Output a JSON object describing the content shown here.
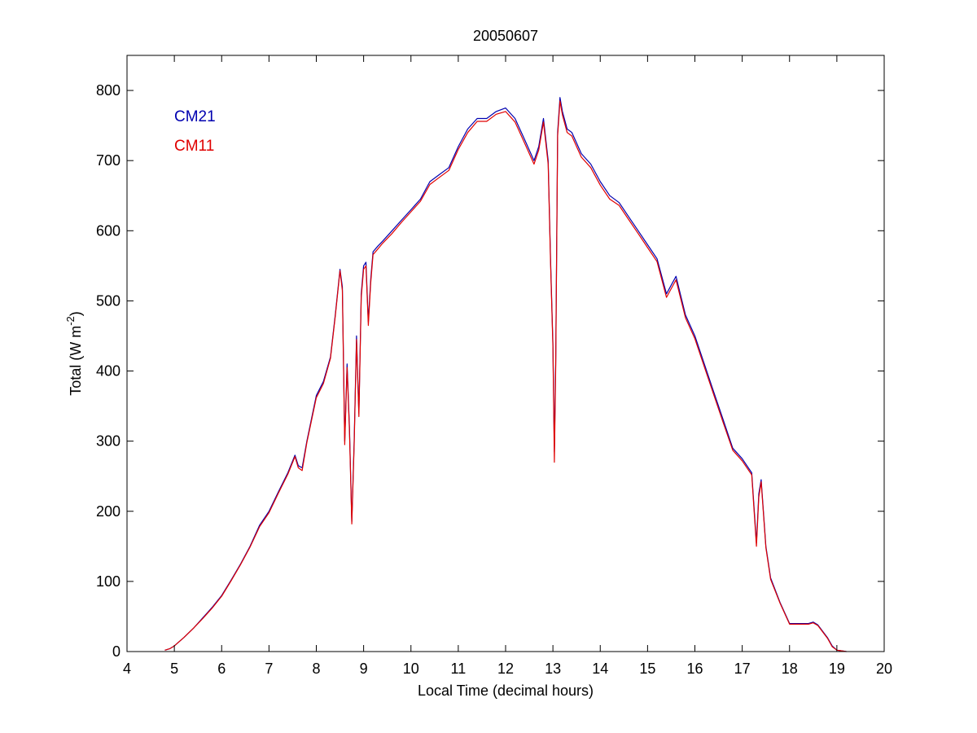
{
  "chart_data": {
    "type": "line",
    "title": "20050607",
    "xlabel": "Local Time (decimal hours)",
    "ylabel": {
      "prefix": "Total (W m",
      "superscript": "-2",
      "suffix": ")"
    },
    "xlim": [
      4,
      20
    ],
    "ylim": [
      0,
      850
    ],
    "xticks": [
      4,
      5,
      6,
      7,
      8,
      9,
      10,
      11,
      12,
      13,
      14,
      15,
      16,
      17,
      18,
      19,
      20
    ],
    "yticks": [
      0,
      100,
      200,
      300,
      400,
      500,
      600,
      700,
      800
    ],
    "grid": false,
    "legend": {
      "position": "top-left"
    },
    "series": [
      {
        "name": "CM21",
        "color": "#0000b0",
        "x": [
          4.8,
          4.9,
          5.0,
          5.2,
          5.4,
          5.6,
          5.8,
          6.0,
          6.2,
          6.4,
          6.6,
          6.8,
          7.0,
          7.2,
          7.4,
          7.55,
          7.62,
          7.7,
          7.8,
          8.0,
          8.15,
          8.3,
          8.4,
          8.5,
          8.55,
          8.6,
          8.65,
          8.7,
          8.75,
          8.8,
          8.85,
          8.9,
          8.95,
          9.0,
          9.05,
          9.1,
          9.15,
          9.2,
          9.3,
          9.4,
          9.6,
          9.8,
          10.0,
          10.2,
          10.4,
          10.6,
          10.8,
          11.0,
          11.2,
          11.4,
          11.6,
          11.8,
          12.0,
          12.2,
          12.4,
          12.6,
          12.7,
          12.8,
          12.9,
          12.95,
          13.0,
          13.03,
          13.06,
          13.1,
          13.15,
          13.2,
          13.3,
          13.4,
          13.5,
          13.6,
          13.8,
          14.0,
          14.2,
          14.4,
          14.6,
          14.8,
          15.0,
          15.2,
          15.4,
          15.6,
          15.8,
          16.0,
          16.2,
          16.4,
          16.6,
          16.8,
          17.0,
          17.2,
          17.3,
          17.35,
          17.4,
          17.5,
          17.6,
          17.8,
          18.0,
          18.2,
          18.4,
          18.5,
          18.6,
          18.8,
          18.9,
          19.0,
          19.1,
          19.2
        ],
        "values": [
          2,
          4,
          8,
          20,
          33,
          48,
          63,
          80,
          102,
          125,
          150,
          180,
          200,
          228,
          255,
          280,
          265,
          262,
          300,
          365,
          385,
          420,
          480,
          545,
          520,
          300,
          410,
          320,
          185,
          300,
          450,
          340,
          510,
          550,
          555,
          470,
          530,
          570,
          578,
          585,
          600,
          615,
          630,
          645,
          670,
          680,
          690,
          720,
          745,
          760,
          760,
          770,
          775,
          760,
          730,
          700,
          720,
          760,
          700,
          560,
          440,
          285,
          420,
          740,
          790,
          770,
          745,
          740,
          725,
          710,
          695,
          670,
          650,
          640,
          620,
          600,
          580,
          560,
          510,
          535,
          480,
          450,
          410,
          370,
          330,
          290,
          275,
          255,
          155,
          225,
          245,
          150,
          105,
          70,
          40,
          40,
          40,
          42,
          38,
          20,
          8,
          2,
          1,
          0
        ]
      },
      {
        "name": "CM11",
        "color": "#e00000",
        "x": [
          4.8,
          4.9,
          5.0,
          5.2,
          5.4,
          5.6,
          5.8,
          6.0,
          6.2,
          6.4,
          6.6,
          6.8,
          7.0,
          7.2,
          7.4,
          7.55,
          7.62,
          7.7,
          7.8,
          8.0,
          8.15,
          8.3,
          8.4,
          8.5,
          8.55,
          8.6,
          8.65,
          8.7,
          8.75,
          8.8,
          8.85,
          8.9,
          8.95,
          9.0,
          9.05,
          9.1,
          9.15,
          9.2,
          9.3,
          9.4,
          9.6,
          9.8,
          10.0,
          10.2,
          10.4,
          10.6,
          10.8,
          11.0,
          11.2,
          11.4,
          11.6,
          11.8,
          12.0,
          12.2,
          12.4,
          12.6,
          12.7,
          12.8,
          12.9,
          12.95,
          13.0,
          13.03,
          13.06,
          13.1,
          13.15,
          13.2,
          13.3,
          13.4,
          13.5,
          13.6,
          13.8,
          14.0,
          14.2,
          14.4,
          14.6,
          14.8,
          15.0,
          15.2,
          15.4,
          15.6,
          15.8,
          16.0,
          16.2,
          16.4,
          16.6,
          16.8,
          17.0,
          17.2,
          17.3,
          17.35,
          17.4,
          17.5,
          17.6,
          17.8,
          18.0,
          18.2,
          18.4,
          18.5,
          18.6,
          18.8,
          18.9,
          19.0,
          19.1,
          19.2
        ],
        "values": [
          2,
          4,
          8,
          20,
          33,
          47,
          62,
          79,
          101,
          124,
          149,
          178,
          198,
          226,
          253,
          278,
          262,
          258,
          298,
          362,
          382,
          418,
          478,
          543,
          515,
          295,
          405,
          315,
          182,
          295,
          445,
          335,
          505,
          545,
          550,
          465,
          525,
          566,
          574,
          582,
          596,
          612,
          627,
          642,
          666,
          676,
          686,
          716,
          740,
          756,
          756,
          766,
          770,
          755,
          725,
          695,
          715,
          755,
          695,
          555,
          435,
          270,
          410,
          735,
          785,
          765,
          740,
          735,
          720,
          705,
          690,
          665,
          645,
          636,
          616,
          596,
          576,
          556,
          505,
          530,
          476,
          446,
          406,
          366,
          326,
          287,
          272,
          252,
          150,
          220,
          242,
          148,
          103,
          69,
          39,
          39,
          39,
          41,
          37,
          19,
          7,
          2,
          1,
          0
        ]
      }
    ]
  }
}
